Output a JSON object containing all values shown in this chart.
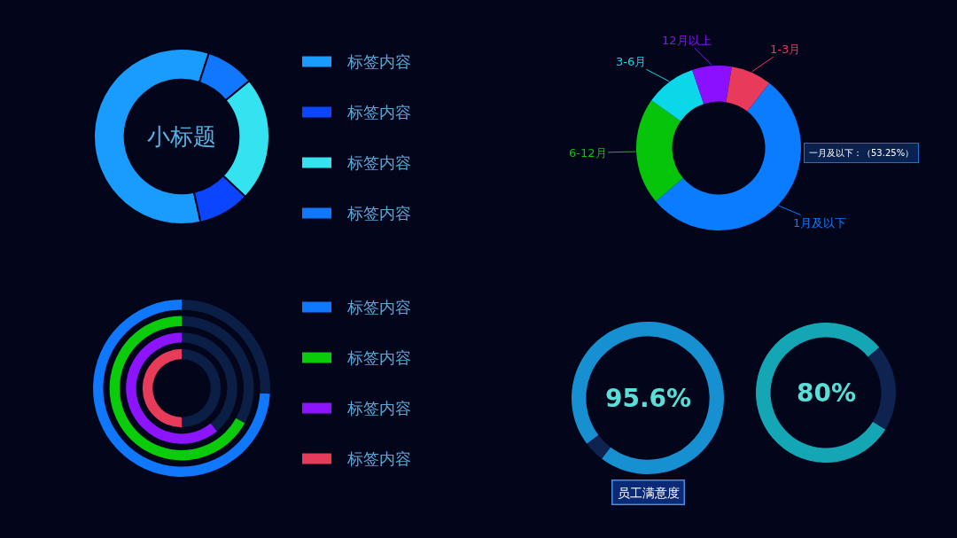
{
  "chart_data": [
    {
      "type": "donut",
      "title": "小标题",
      "categories": [
        "标签内容",
        "标签内容",
        "标签内容",
        "标签内容"
      ],
      "values": [
        58.5,
        9.5,
        23,
        9
      ],
      "colors": [
        "#1a9cff",
        "#0b45ff",
        "#34e2f0",
        "#1277ff"
      ],
      "legend": "right"
    },
    {
      "type": "donut",
      "categories": [
        "1月及以下",
        "6-12月",
        "3-6月",
        "12月以上",
        "1-3月"
      ],
      "values": [
        53.25,
        21,
        10,
        7.75,
        8
      ],
      "colors": [
        "#0a7cff",
        "#06c40a",
        "#0ad8e8",
        "#8a10ff",
        "#e83a5a"
      ],
      "annotations": [
        "一月及以下：（53.25%）"
      ]
    },
    {
      "type": "donut",
      "categories": [
        null,
        null
      ],
      "series": [
        {
          "name": "标签内容",
          "colors": [
            "#0f78ff",
            "#0b1e45"
          ],
          "values": [
            74,
            26
          ]
        },
        {
          "name": "标签内容",
          "colors": [
            "#0acc0a",
            "#0b1e45"
          ],
          "values": [
            67,
            33
          ]
        },
        {
          "name": "标签内容",
          "colors": [
            "#8c14ff",
            "#0b1e45"
          ],
          "values": [
            61,
            39
          ]
        },
        {
          "name": "标签内容",
          "colors": [
            "#e63c5a",
            "#0b1e45"
          ],
          "values": [
            50,
            50
          ]
        }
      ],
      "legend": "right"
    },
    {
      "type": "donut",
      "title": "员工满意度",
      "categories": [
        null,
        null
      ],
      "values": [
        95.6,
        4.4
      ],
      "colors": [
        "#1690d0",
        "#0e2350"
      ],
      "value_labels": [
        "95.6%",
        null
      ]
    },
    {
      "type": "donut",
      "categories": [
        null,
        null
      ],
      "values": [
        80,
        20
      ],
      "colors": [
        "#14a6b4",
        "#0e2350"
      ],
      "value_labels": [
        "80%",
        null
      ]
    }
  ]
}
